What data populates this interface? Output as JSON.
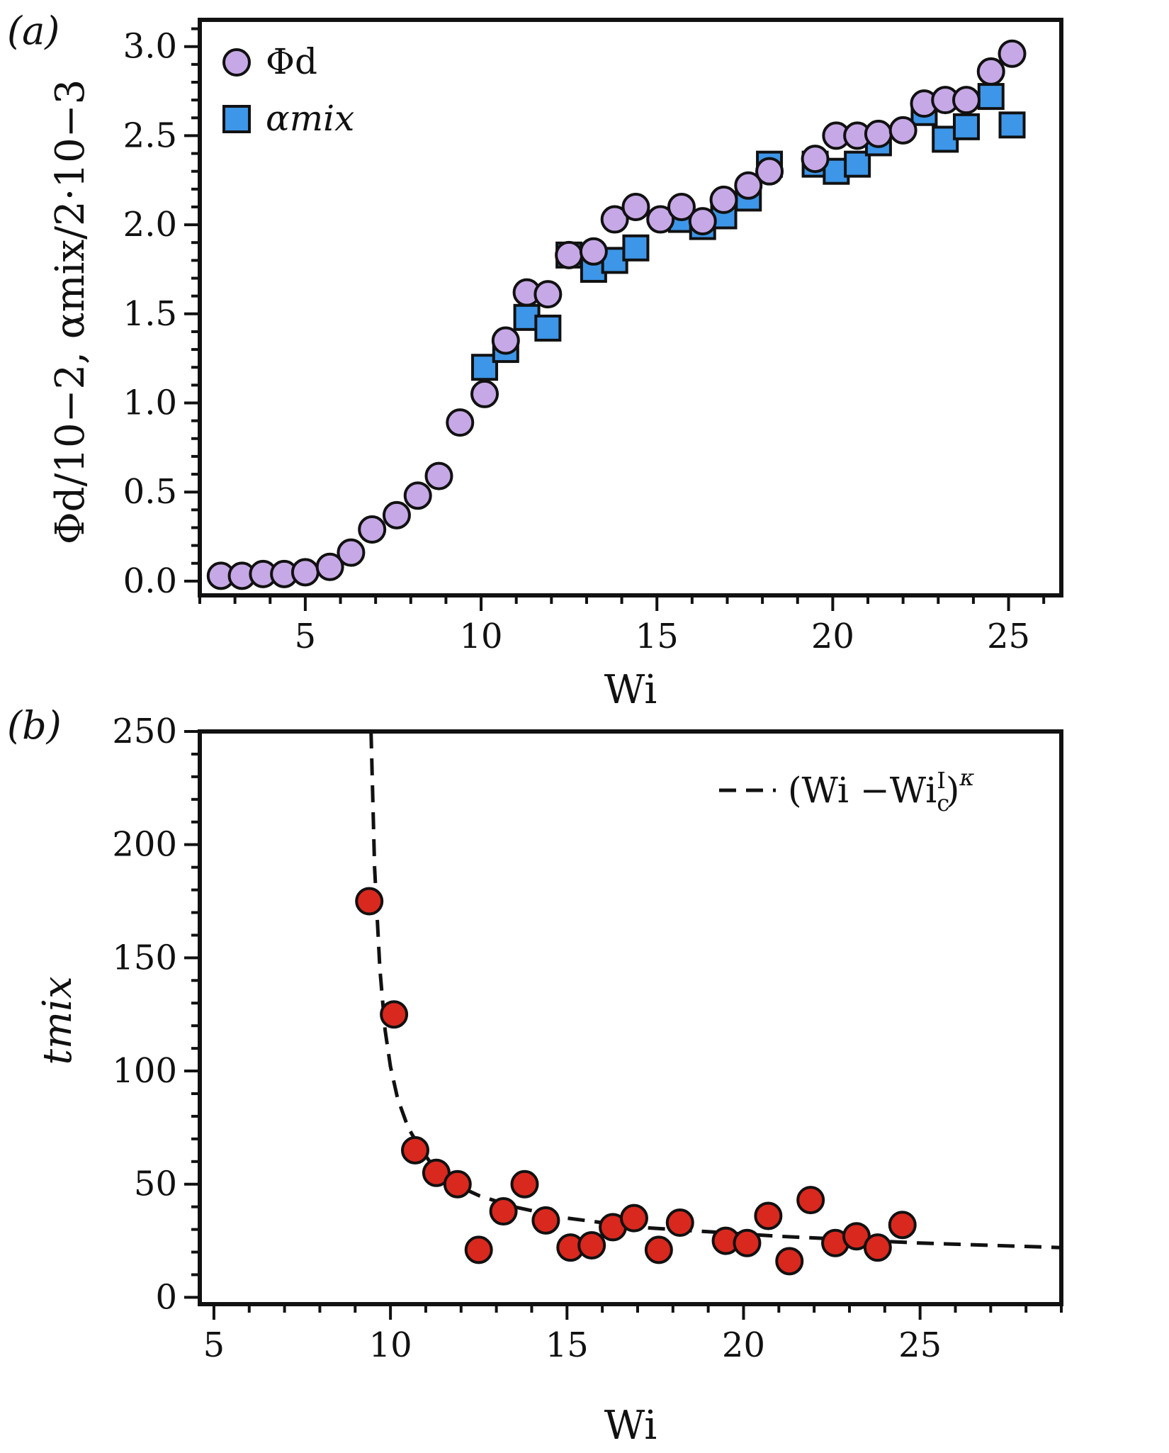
{
  "chart_data": [
    {
      "type": "scatter",
      "panel_label": "(a)",
      "xlabel": "Wi",
      "ylabel": "Φd/10−2, αmix/2·10−3",
      "xlim": [
        2.0,
        26.5
      ],
      "ylim": [
        -0.08,
        3.15
      ],
      "xticks": [
        5,
        10,
        15,
        20,
        25
      ],
      "yticks": [
        0.0,
        0.5,
        1.0,
        1.5,
        2.0,
        2.5,
        3.0
      ],
      "xtick_labels": [
        "5",
        "10",
        "15",
        "20",
        "25"
      ],
      "ytick_labels": [
        "0.0",
        "0.5",
        "1.0",
        "1.5",
        "2.0",
        "2.5",
        "3.0"
      ],
      "legend_position": "top-left",
      "series": [
        {
          "name": "Φd",
          "legend_label": "Φd",
          "marker": "circle",
          "color": "#C6A8E6",
          "x": [
            2.6,
            3.2,
            3.8,
            4.4,
            5.0,
            5.7,
            6.3,
            6.9,
            7.6,
            8.2,
            8.8,
            9.4,
            10.1,
            10.7,
            11.3,
            11.9,
            12.5,
            13.2,
            13.8,
            14.4,
            15.1,
            15.7,
            16.3,
            16.9,
            17.6,
            18.2,
            19.5,
            20.1,
            20.7,
            21.3,
            22.0,
            22.6,
            23.2,
            23.8,
            24.5,
            25.1
          ],
          "y": [
            0.03,
            0.03,
            0.04,
            0.04,
            0.05,
            0.08,
            0.16,
            0.29,
            0.37,
            0.48,
            0.59,
            0.89,
            1.05,
            1.35,
            1.62,
            1.61,
            1.83,
            1.85,
            2.03,
            2.1,
            2.03,
            2.1,
            2.02,
            2.14,
            2.22,
            2.3,
            2.37,
            2.5,
            2.5,
            2.51,
            2.53,
            2.68,
            2.7,
            2.7,
            2.86,
            2.96
          ]
        },
        {
          "name": "αmix",
          "legend_label": "αmix",
          "marker": "square",
          "color": "#3D96E8",
          "x": [
            10.1,
            10.7,
            11.3,
            11.9,
            12.5,
            13.2,
            13.8,
            14.4,
            15.7,
            16.3,
            16.9,
            17.6,
            18.2,
            19.5,
            20.1,
            20.7,
            21.3,
            22.6,
            23.2,
            23.8,
            24.5,
            25.1
          ],
          "y": [
            1.2,
            1.3,
            1.48,
            1.42,
            1.83,
            1.75,
            1.8,
            1.87,
            2.03,
            1.99,
            2.05,
            2.15,
            2.34,
            2.34,
            2.3,
            2.34,
            2.46,
            2.63,
            2.48,
            2.55,
            2.72,
            2.56
          ]
        }
      ]
    },
    {
      "type": "scatter",
      "panel_label": "(b)",
      "xlabel": "Wi",
      "ylabel": "tmix",
      "xlim": [
        4.6,
        29.0
      ],
      "ylim": [
        -3,
        250
      ],
      "xticks": [
        5,
        10,
        15,
        20,
        25
      ],
      "yticks": [
        0,
        50,
        100,
        150,
        200,
        250
      ],
      "xtick_labels": [
        "5",
        "10",
        "15",
        "20",
        "25"
      ],
      "ytick_labels": [
        "0",
        "50",
        "100",
        "150",
        "200",
        "250"
      ],
      "legend_position": "top-right",
      "series": [
        {
          "name": "tmix",
          "marker": "circle",
          "color": "#D9281E",
          "x": [
            9.4,
            10.1,
            10.7,
            11.3,
            11.9,
            12.5,
            13.2,
            13.8,
            14.4,
            15.1,
            15.7,
            16.3,
            16.9,
            17.6,
            18.2,
            19.5,
            20.1,
            20.7,
            21.3,
            21.9,
            22.6,
            23.2,
            23.8,
            24.5
          ],
          "y": [
            175,
            125,
            65,
            55,
            50,
            21,
            38,
            50,
            34,
            22,
            23,
            31,
            35,
            21,
            33,
            25,
            24,
            36,
            16,
            43,
            24,
            27,
            22,
            32
          ]
        }
      ],
      "fit": {
        "name": "(Wi − Wi_c^I)^κ",
        "legend_label": "(Wi −Wi",
        "sub": "c",
        "sup": "I",
        "exponent": "κ",
        "close_paren": ")",
        "style": "dashed",
        "color": "#111111",
        "x": [
          9.45,
          9.55,
          9.7,
          9.85,
          10.0,
          10.2,
          10.5,
          10.8,
          11.2,
          11.8,
          12.5,
          13.5,
          15.0,
          17.0,
          19.0,
          21.0,
          23.0,
          25.0,
          27.0,
          29.0
        ],
        "y": [
          250,
          190,
          145,
          118,
          102,
          88,
          75,
          67,
          58,
          50,
          45,
          40,
          35,
          31,
          29,
          27,
          25.5,
          24,
          23,
          22
        ]
      }
    }
  ]
}
